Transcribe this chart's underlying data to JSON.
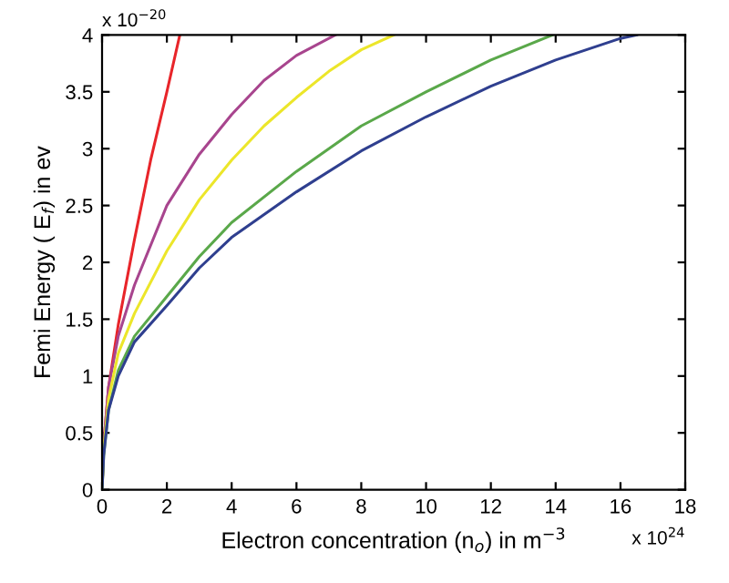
{
  "chart_data": {
    "type": "line",
    "xlabel": "Electron concentration (n$_{o}$) in m$^{−3}$",
    "ylabel": "Femi Energy ( E$_{f}$) in ev",
    "annotations": [
      "x 10$^{−20}$",
      "x 10$^{24}$"
    ],
    "xlim": [
      0,
      18
    ],
    "xticks": [
      0,
      2,
      4,
      6,
      8,
      10,
      12,
      14,
      16,
      18
    ],
    "ylim": [
      0,
      4
    ],
    "yticks": [
      0,
      0.5,
      1,
      1.5,
      2,
      2.5,
      3,
      3.5,
      4
    ],
    "grid": false,
    "legend": false,
    "marker": "none",
    "line_style": "solid",
    "series": [
      {
        "color": "#e8252a",
        "x": [
          0,
          0.05,
          0.2,
          0.5,
          1,
          1.5,
          2,
          2.4
        ],
        "values": [
          0,
          0.4,
          0.9,
          1.45,
          2.2,
          2.9,
          3.5,
          4.0
        ]
      },
      {
        "color": "#a8458e",
        "x": [
          0,
          0.05,
          0.2,
          0.5,
          1,
          2,
          3,
          4,
          5,
          6,
          7.2
        ],
        "values": [
          0,
          0.4,
          0.9,
          1.35,
          1.8,
          2.5,
          2.95,
          3.3,
          3.6,
          3.82,
          4.0
        ]
      },
      {
        "color": "#ece62a",
        "x": [
          0,
          0.05,
          0.2,
          0.5,
          1,
          2,
          3,
          4,
          5,
          6,
          7,
          8,
          9
        ],
        "values": [
          0,
          0.35,
          0.8,
          1.2,
          1.55,
          2.1,
          2.55,
          2.9,
          3.2,
          3.45,
          3.68,
          3.87,
          4.0
        ]
      },
      {
        "color": "#5aa84a",
        "x": [
          0,
          0.05,
          0.2,
          0.5,
          1,
          2,
          3,
          4,
          6,
          8,
          10,
          12,
          13.9
        ],
        "values": [
          0,
          0.3,
          0.7,
          1.05,
          1.35,
          1.7,
          2.05,
          2.35,
          2.8,
          3.2,
          3.5,
          3.78,
          4.0
        ]
      },
      {
        "color": "#2f3f8f",
        "x": [
          0,
          0.05,
          0.2,
          0.5,
          1,
          2,
          3,
          4,
          6,
          8,
          10,
          12,
          14,
          16,
          16.5
        ],
        "values": [
          0,
          0.3,
          0.7,
          1.0,
          1.3,
          1.62,
          1.95,
          2.22,
          2.62,
          2.98,
          3.28,
          3.55,
          3.78,
          3.97,
          4.0
        ]
      }
    ]
  }
}
